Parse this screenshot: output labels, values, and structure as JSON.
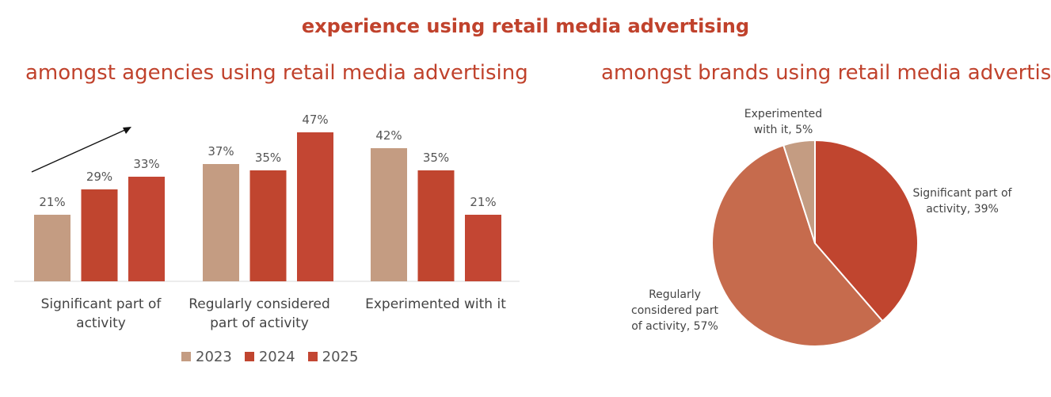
{
  "page": {
    "title": "experience using retail media advertising"
  },
  "colors": {
    "c2023": "#c49c82",
    "c2024": "#c0452f",
    "c2025": "#c34633",
    "title": "#c0422c"
  },
  "chart_data": [
    {
      "type": "bar",
      "title": "amongst agencies using retail media advertising",
      "categories": [
        "Significant part of activity",
        "Regularly considered part of activity",
        "Experimented with it"
      ],
      "series": [
        {
          "name": "2023",
          "values": [
            21,
            37,
            42
          ],
          "labels": [
            "21%",
            "37%",
            "42%"
          ]
        },
        {
          "name": "2024",
          "values": [
            29,
            35,
            35
          ],
          "labels": [
            "29%",
            "35%",
            "35%"
          ]
        },
        {
          "name": "2025",
          "values": [
            33,
            47,
            21
          ],
          "labels": [
            "33%",
            "47%",
            "21%"
          ]
        }
      ],
      "ylim": [
        0,
        50
      ],
      "grid": false,
      "legend_position": "bottom",
      "annotations": [
        "upward trend arrow"
      ]
    },
    {
      "type": "pie",
      "title": "amongst brands using retail media advertising",
      "slices": [
        {
          "label": "Significant part of activity",
          "value": 39,
          "text": "Significant part of activity, 39%",
          "color": "#c0452f"
        },
        {
          "label": "Regularly considered part of activity",
          "value": 57,
          "text": "Regularly considered part of activity, 57%",
          "color": "#c66b4d"
        },
        {
          "label": "Experimented with it",
          "value": 5,
          "text": "Experimented with it, 5%",
          "color": "#c49c82"
        }
      ]
    }
  ]
}
